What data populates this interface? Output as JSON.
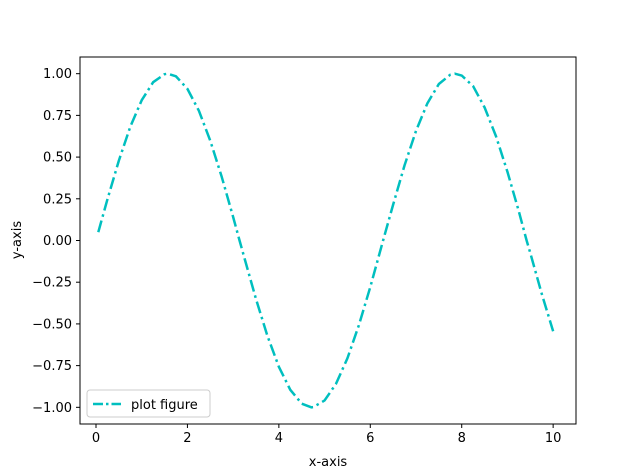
{
  "chart_data": {
    "type": "line",
    "title": "",
    "xlabel": "x-axis",
    "ylabel": "y-axis",
    "xlim": [
      -0.35,
      10.5
    ],
    "ylim": [
      -1.1,
      1.1
    ],
    "xticks": [
      0,
      2,
      4,
      6,
      8,
      10
    ],
    "xtick_labels": [
      "0",
      "2",
      "4",
      "6",
      "8",
      "10"
    ],
    "yticks": [
      1.0,
      0.75,
      0.5,
      0.25,
      0.0,
      -0.25,
      -0.5,
      -0.75,
      -1.0
    ],
    "ytick_labels": [
      "1.00",
      "0.75",
      "0.50",
      "0.25",
      "0.00",
      "−0.25",
      "−0.50",
      "−0.75",
      "−1.00"
    ],
    "grid": false,
    "legend_position": "lower-left",
    "series": [
      {
        "name": "plot figure",
        "color": "#00bfbf",
        "linestyle": "dashdot",
        "x": [
          0.05,
          0.25,
          0.5,
          0.75,
          1.0,
          1.25,
          1.5,
          1.57,
          1.75,
          2.0,
          2.25,
          2.5,
          2.75,
          3.0,
          3.14,
          3.25,
          3.5,
          3.75,
          4.0,
          4.25,
          4.5,
          4.71,
          4.75,
          5.0,
          5.25,
          5.5,
          5.75,
          6.0,
          6.28,
          6.5,
          6.75,
          7.0,
          7.25,
          7.5,
          7.75,
          7.85,
          8.0,
          8.25,
          8.5,
          8.75,
          9.0,
          9.25,
          9.42,
          9.5,
          9.75,
          10.0
        ],
        "y": [
          0.05,
          0.247,
          0.479,
          0.682,
          0.841,
          0.949,
          0.997,
          1.0,
          0.984,
          0.909,
          0.778,
          0.598,
          0.382,
          0.141,
          0.0,
          -0.108,
          -0.351,
          -0.572,
          -0.757,
          -0.895,
          -0.978,
          -1.0,
          -0.999,
          -0.959,
          -0.859,
          -0.706,
          -0.508,
          -0.279,
          0.0,
          0.215,
          0.451,
          0.657,
          0.823,
          0.938,
          0.994,
          1.0,
          0.989,
          0.925,
          0.798,
          0.625,
          0.412,
          0.174,
          0.0,
          -0.075,
          -0.319,
          -0.544
        ]
      }
    ]
  }
}
